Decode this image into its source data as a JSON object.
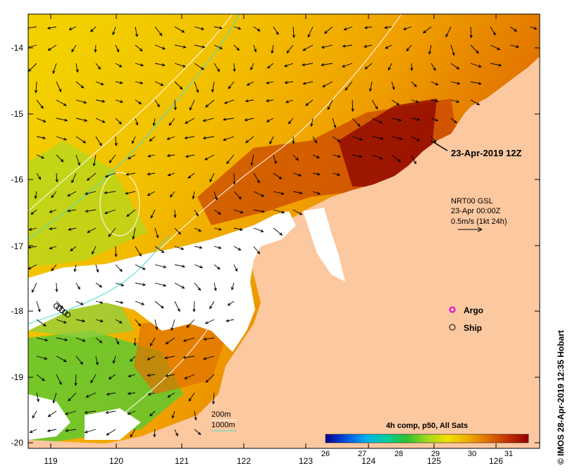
{
  "map": {
    "lon_labels": [
      "119",
      "120",
      "121",
      "122",
      "123",
      "124",
      "125",
      "126"
    ],
    "lat_labels": [
      "-14",
      "-15",
      "-16",
      "-17",
      "-18",
      "-19",
      "-20"
    ],
    "timestamp_label": "23-Apr-2019 12Z",
    "current_model": {
      "line1": "NRT00 GSL",
      "line2": "23-Apr 00:00Z",
      "line3": "0.5m/s (1kt 24h)"
    },
    "legend": {
      "argo_label": "Argo",
      "ship_label": "Ship",
      "argo_color": "#e000e0"
    },
    "isobaths": {
      "label_200": "200m",
      "label_1000": "1000m",
      "color_200": "#ffffff",
      "color_1000": "#40e0d0"
    },
    "colorbar": {
      "title": "4h comp, p50, All Sats",
      "ticks": [
        "26",
        "27",
        "28",
        "29",
        "30",
        "31"
      ],
      "colors": [
        "#00008b",
        "#0050e0",
        "#00b0f0",
        "#00d0a0",
        "#30c030",
        "#a0d820",
        "#f0e000",
        "#f0b000",
        "#e07000",
        "#c03000",
        "#900000"
      ]
    },
    "land_color": "#fcc8a0",
    "credit": "© IMOS 28-Apr-2019 12:35 Hobart"
  }
}
